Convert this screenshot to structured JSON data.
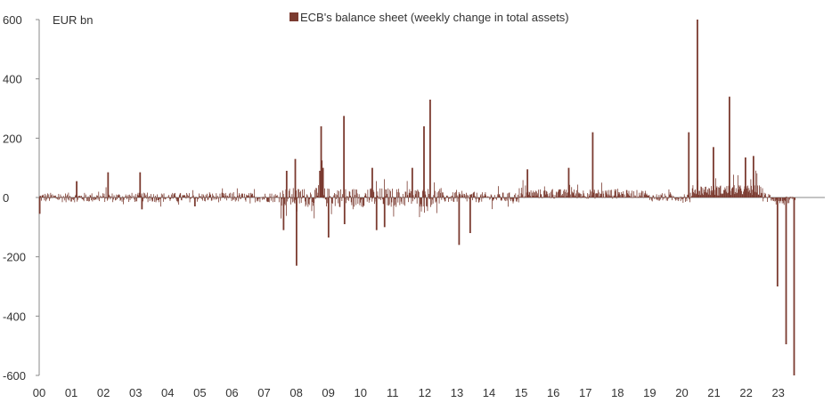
{
  "chart_data": {
    "type": "bar",
    "ylabel": "EUR bn",
    "ylim": [
      -600,
      600
    ],
    "yticks": [
      600,
      400,
      200,
      0,
      -200,
      -400,
      -600
    ],
    "year_labels": [
      "00",
      "01",
      "02",
      "03",
      "04",
      "05",
      "06",
      "07",
      "08",
      "09",
      "10",
      "11",
      "12",
      "13",
      "14",
      "15",
      "16",
      "17",
      "18",
      "19",
      "20",
      "21",
      "22",
      "23"
    ],
    "series": [
      {
        "name": "ECB's balance sheet (weekly change in total assets)",
        "color": "#7b3b30",
        "points": [
          {
            "x": "2000-01-07",
            "y": -55
          },
          {
            "x": "2001-03-02",
            "y": 55
          },
          {
            "x": "2002-02-22",
            "y": 85
          },
          {
            "x": "2003-02-21",
            "y": 85
          },
          {
            "x": "2003-03-14",
            "y": -40
          },
          {
            "x": "2004-11-05",
            "y": -30
          },
          {
            "x": "2007-08-10",
            "y": -110
          },
          {
            "x": "2007-09-14",
            "y": 90
          },
          {
            "x": "2007-12-21",
            "y": 130
          },
          {
            "x": "2008-01-04",
            "y": -230
          },
          {
            "x": "2008-09-26",
            "y": 90
          },
          {
            "x": "2008-10-10",
            "y": 240
          },
          {
            "x": "2008-10-17",
            "y": 125
          },
          {
            "x": "2008-10-31",
            "y": 100
          },
          {
            "x": "2009-01-02",
            "y": -135
          },
          {
            "x": "2009-06-26",
            "y": 275
          },
          {
            "x": "2009-07-03",
            "y": -90
          },
          {
            "x": "2010-05-14",
            "y": 100
          },
          {
            "x": "2010-07-02",
            "y": -110
          },
          {
            "x": "2010-10-01",
            "y": -100
          },
          {
            "x": "2011-08-12",
            "y": 100
          },
          {
            "x": "2011-12-23",
            "y": 240
          },
          {
            "x": "2012-03-02",
            "y": 330
          },
          {
            "x": "2013-01-25",
            "y": -160
          },
          {
            "x": "2013-05-31",
            "y": -120
          },
          {
            "x": "2015-03-13",
            "y": 95
          },
          {
            "x": "2016-06-24",
            "y": 100
          },
          {
            "x": "2017-03-24",
            "y": 220
          },
          {
            "x": "2020-03-20",
            "y": 220
          },
          {
            "x": "2020-06-26",
            "y": 600
          },
          {
            "x": "2020-12-25",
            "y": 170
          },
          {
            "x": "2021-06-25",
            "y": 340
          },
          {
            "x": "2021-12-24",
            "y": 135
          },
          {
            "x": "2022-03-25",
            "y": 140
          },
          {
            "x": "2022-12-23",
            "y": -300
          },
          {
            "x": "2023-03-31",
            "y": -495
          },
          {
            "x": "2023-06-30",
            "y": -600
          }
        ],
        "background_noise_range": [
          -30,
          30
        ]
      }
    ]
  }
}
